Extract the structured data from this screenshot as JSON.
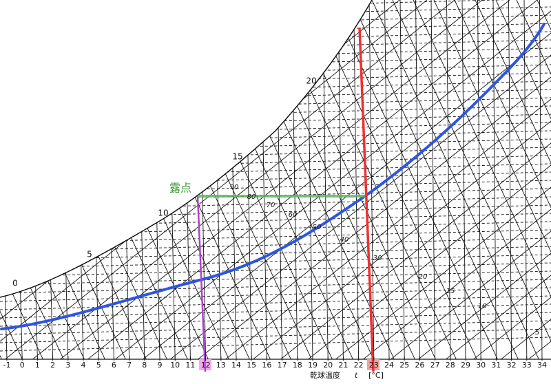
{
  "x_axis": {
    "title": "乾球温度",
    "symbol": "t",
    "unit": "[°C]",
    "ticks": [
      -1,
      0,
      1,
      2,
      3,
      4,
      5,
      6,
      7,
      8,
      9,
      10,
      11,
      12,
      13,
      14,
      15,
      16,
      17,
      18,
      19,
      20,
      21,
      22,
      23,
      24,
      25,
      26,
      27,
      28,
      29,
      30,
      31,
      32,
      33,
      34
    ]
  },
  "dew_point_label": "露点",
  "saturation_labels": [
    0,
    5,
    10,
    15,
    20
  ],
  "rh_labels": [
    90,
    80,
    70,
    60,
    50,
    40,
    30,
    20,
    15,
    10,
    5
  ]
}
